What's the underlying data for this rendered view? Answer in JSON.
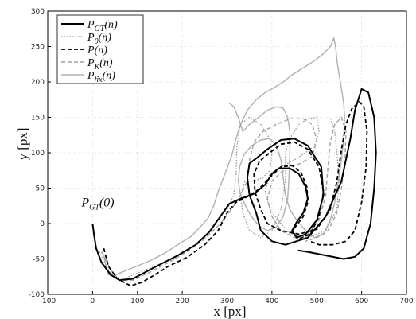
{
  "chart_data": {
    "type": "line",
    "xlabel": "x [px]",
    "ylabel": "y [px]",
    "xlim": [
      -100,
      700
    ],
    "ylim": [
      -100,
      300
    ],
    "xticks": [
      -100,
      0,
      100,
      200,
      300,
      400,
      500,
      600,
      700
    ],
    "yticks": [
      -100,
      -50,
      0,
      50,
      100,
      150,
      200,
      250,
      300
    ],
    "grid": true,
    "legend_position": "top-left",
    "annotations": [
      {
        "text": "P_GT(0)",
        "x": 0,
        "y": 15
      }
    ],
    "series": [
      {
        "name": "P_GT(n)",
        "color": "#000000",
        "dash": "",
        "width": 2,
        "points": [
          [
            0,
            0
          ],
          [
            3,
            -15
          ],
          [
            8,
            -35
          ],
          [
            20,
            -55
          ],
          [
            40,
            -72
          ],
          [
            60,
            -80
          ],
          [
            90,
            -78
          ],
          [
            120,
            -68
          ],
          [
            150,
            -58
          ],
          [
            190,
            -45
          ],
          [
            230,
            -30
          ],
          [
            260,
            -12
          ],
          [
            285,
            10
          ],
          [
            305,
            28
          ],
          [
            330,
            35
          ],
          [
            360,
            42
          ],
          [
            385,
            55
          ],
          [
            400,
            70
          ],
          [
            415,
            78
          ],
          [
            440,
            78
          ],
          [
            460,
            70
          ],
          [
            475,
            52
          ],
          [
            480,
            35
          ],
          [
            470,
            15
          ],
          [
            455,
            2
          ],
          [
            445,
            -10
          ],
          [
            455,
            -20
          ],
          [
            475,
            -15
          ],
          [
            500,
            5
          ],
          [
            515,
            40
          ],
          [
            510,
            80
          ],
          [
            480,
            110
          ],
          [
            450,
            120
          ],
          [
            420,
            118
          ],
          [
            390,
            105
          ],
          [
            365,
            92
          ],
          [
            350,
            85
          ],
          [
            345,
            65
          ],
          [
            350,
            40
          ],
          [
            365,
            15
          ],
          [
            375,
            -10
          ],
          [
            400,
            -25
          ],
          [
            430,
            -30
          ],
          [
            480,
            -20
          ],
          [
            520,
            10
          ],
          [
            555,
            60
          ],
          [
            575,
            120
          ],
          [
            585,
            160
          ],
          [
            600,
            190
          ],
          [
            615,
            185
          ],
          [
            628,
            150
          ],
          [
            632,
            100
          ],
          [
            628,
            50
          ],
          [
            620,
            0
          ],
          [
            605,
            -35
          ],
          [
            585,
            -47
          ],
          [
            560,
            -50
          ],
          [
            520,
            -45
          ],
          [
            480,
            -40
          ],
          [
            458,
            -38
          ]
        ]
      },
      {
        "name": "P_0(n)",
        "color": "#8c8c8c",
        "dash": "1.5 2",
        "width": 1.2,
        "points": [
          [
            15,
            -40
          ],
          [
            30,
            -60
          ],
          [
            45,
            -75
          ],
          [
            70,
            -78
          ],
          [
            100,
            -70
          ],
          [
            140,
            -60
          ],
          [
            180,
            -50
          ],
          [
            220,
            -35
          ],
          [
            260,
            -15
          ],
          [
            280,
            5
          ],
          [
            300,
            20
          ],
          [
            315,
            40
          ],
          [
            320,
            70
          ],
          [
            322,
            110
          ],
          [
            330,
            140
          ],
          [
            350,
            150
          ],
          [
            375,
            140
          ],
          [
            395,
            120
          ],
          [
            400,
            95
          ],
          [
            395,
            75
          ],
          [
            380,
            65
          ],
          [
            360,
            60
          ],
          [
            340,
            60
          ],
          [
            330,
            40
          ],
          [
            335,
            15
          ],
          [
            350,
            -10
          ],
          [
            375,
            -20
          ],
          [
            400,
            -10
          ],
          [
            420,
            20
          ],
          [
            430,
            60
          ],
          [
            430,
            100
          ],
          [
            440,
            120
          ],
          [
            460,
            140
          ],
          [
            480,
            148
          ],
          [
            500,
            150
          ],
          [
            505,
            130
          ],
          [
            495,
            110
          ],
          [
            475,
            100
          ],
          [
            450,
            90
          ],
          [
            420,
            80
          ],
          [
            395,
            70
          ],
          [
            385,
            45
          ],
          [
            395,
            20
          ],
          [
            420,
            0
          ],
          [
            440,
            -15
          ],
          [
            480,
            -20
          ],
          [
            520,
            -10
          ],
          [
            545,
            20
          ],
          [
            550,
            60
          ],
          [
            545,
            100
          ],
          [
            540,
            130
          ],
          [
            530,
            150
          ]
        ]
      },
      {
        "name": "P(n)",
        "color": "#000000",
        "dash": "5 3",
        "width": 1.8,
        "points": [
          [
            25,
            -35
          ],
          [
            35,
            -60
          ],
          [
            55,
            -78
          ],
          [
            85,
            -88
          ],
          [
            110,
            -83
          ],
          [
            140,
            -72
          ],
          [
            170,
            -60
          ],
          [
            210,
            -48
          ],
          [
            250,
            -30
          ],
          [
            280,
            -10
          ],
          [
            300,
            15
          ],
          [
            320,
            30
          ],
          [
            345,
            38
          ],
          [
            370,
            48
          ],
          [
            395,
            65
          ],
          [
            420,
            80
          ],
          [
            445,
            82
          ],
          [
            465,
            72
          ],
          [
            478,
            52
          ],
          [
            480,
            30
          ],
          [
            470,
            10
          ],
          [
            455,
            -2
          ],
          [
            445,
            -12
          ],
          [
            460,
            -22
          ],
          [
            485,
            -15
          ],
          [
            505,
            10
          ],
          [
            515,
            45
          ],
          [
            505,
            80
          ],
          [
            480,
            105
          ],
          [
            450,
            115
          ],
          [
            420,
            112
          ],
          [
            395,
            100
          ],
          [
            372,
            88
          ],
          [
            360,
            70
          ],
          [
            362,
            45
          ],
          [
            375,
            20
          ],
          [
            390,
            0
          ],
          [
            420,
            -10
          ],
          [
            460,
            -15
          ],
          [
            500,
            -8
          ],
          [
            530,
            20
          ],
          [
            545,
            60
          ],
          [
            555,
            105
          ],
          [
            565,
            140
          ],
          [
            578,
            162
          ],
          [
            595,
            172
          ],
          [
            605,
            165
          ],
          [
            612,
            130
          ],
          [
            610,
            80
          ],
          [
            600,
            30
          ],
          [
            585,
            -10
          ],
          [
            565,
            -25
          ],
          [
            535,
            -30
          ],
          [
            505,
            -30
          ],
          [
            485,
            -25
          ]
        ]
      },
      {
        "name": "P_K(n)",
        "color": "#a0a0a0",
        "dash": "5 3",
        "width": 1.4,
        "points": [
          [
            20,
            -40
          ],
          [
            40,
            -65
          ],
          [
            60,
            -80
          ],
          [
            90,
            -80
          ],
          [
            130,
            -68
          ],
          [
            170,
            -55
          ],
          [
            210,
            -40
          ],
          [
            250,
            -22
          ],
          [
            285,
            0
          ],
          [
            310,
            20
          ],
          [
            330,
            40
          ],
          [
            345,
            60
          ],
          [
            350,
            90
          ],
          [
            360,
            115
          ],
          [
            380,
            130
          ],
          [
            410,
            140
          ],
          [
            440,
            148
          ],
          [
            470,
            148
          ],
          [
            490,
            140
          ],
          [
            500,
            118
          ],
          [
            490,
            95
          ],
          [
            465,
            85
          ],
          [
            440,
            80
          ],
          [
            420,
            72
          ],
          [
            400,
            60
          ],
          [
            390,
            35
          ],
          [
            400,
            10
          ],
          [
            420,
            -10
          ],
          [
            450,
            -20
          ],
          [
            480,
            -15
          ],
          [
            505,
            5
          ],
          [
            520,
            40
          ],
          [
            525,
            80
          ],
          [
            530,
            115
          ],
          [
            540,
            140
          ],
          [
            555,
            150
          ],
          [
            565,
            130
          ],
          [
            563,
            90
          ],
          [
            555,
            50
          ],
          [
            545,
            15
          ],
          [
            525,
            -10
          ],
          [
            500,
            -20
          ],
          [
            475,
            -25
          ]
        ]
      },
      {
        "name": "P_fix(n)",
        "color": "#b0b0b0",
        "dash": "",
        "width": 1.4,
        "points": [
          [
            25,
            -45
          ],
          [
            30,
            -60
          ],
          [
            35,
            -72
          ],
          [
            45,
            -75
          ],
          [
            60,
            -70
          ],
          [
            80,
            -65
          ],
          [
            100,
            -60
          ],
          [
            130,
            -52
          ],
          [
            160,
            -42
          ],
          [
            190,
            -30
          ],
          [
            220,
            -18
          ],
          [
            240,
            -5
          ],
          [
            258,
            8
          ],
          [
            270,
            25
          ],
          [
            280,
            45
          ],
          [
            295,
            70
          ],
          [
            310,
            95
          ],
          [
            320,
            120
          ],
          [
            330,
            140
          ],
          [
            345,
            160
          ],
          [
            365,
            175
          ],
          [
            385,
            185
          ],
          [
            405,
            192
          ],
          [
            425,
            200
          ],
          [
            445,
            210
          ],
          [
            470,
            220
          ],
          [
            495,
            230
          ],
          [
            515,
            240
          ],
          [
            530,
            250
          ],
          [
            538,
            262
          ],
          [
            542,
            250
          ],
          [
            545,
            230
          ],
          [
            550,
            210
          ],
          [
            555,
            190
          ],
          [
            560,
            170
          ],
          [
            562,
            150
          ],
          [
            560,
            120
          ],
          [
            555,
            90
          ],
          [
            548,
            60
          ],
          [
            540,
            30
          ],
          [
            530,
            5
          ],
          [
            515,
            -15
          ],
          [
            495,
            -20
          ],
          [
            475,
            -10
          ],
          [
            455,
            5
          ],
          [
            440,
            20
          ],
          [
            430,
            40
          ],
          [
            425,
            65
          ],
          [
            420,
            90
          ],
          [
            410,
            110
          ],
          [
            395,
            120
          ],
          [
            375,
            118
          ],
          [
            355,
            110
          ],
          [
            338,
            98
          ],
          [
            328,
            80
          ],
          [
            325,
            60
          ],
          [
            330,
            40
          ],
          [
            345,
            20
          ],
          [
            360,
            5
          ],
          [
            375,
            -5
          ],
          [
            390,
            -10
          ],
          [
            410,
            -5
          ],
          [
            425,
            10
          ],
          [
            435,
            35
          ],
          [
            438,
            65
          ],
          [
            440,
            100
          ],
          [
            440,
            130
          ],
          [
            435,
            150
          ],
          [
            425,
            163
          ],
          [
            410,
            165
          ],
          [
            390,
            160
          ],
          [
            370,
            150
          ],
          [
            350,
            140
          ],
          [
            335,
            130
          ],
          [
            325,
            150
          ],
          [
            315,
            165
          ],
          [
            305,
            170
          ]
        ]
      }
    ]
  },
  "legend": {
    "entries": [
      {
        "base": "P",
        "sub": "GT",
        "arg": "(n)"
      },
      {
        "base": "P",
        "sub": "0",
        "arg": "(n)"
      },
      {
        "base": "P",
        "sub": "",
        "arg": "(n)"
      },
      {
        "base": "P",
        "sub": "K",
        "arg": "(n)"
      },
      {
        "base": "P",
        "sub": "fix",
        "arg": "(n)"
      }
    ]
  },
  "annotation_label": {
    "base": "P",
    "sub": "GT",
    "arg": "(0)"
  }
}
